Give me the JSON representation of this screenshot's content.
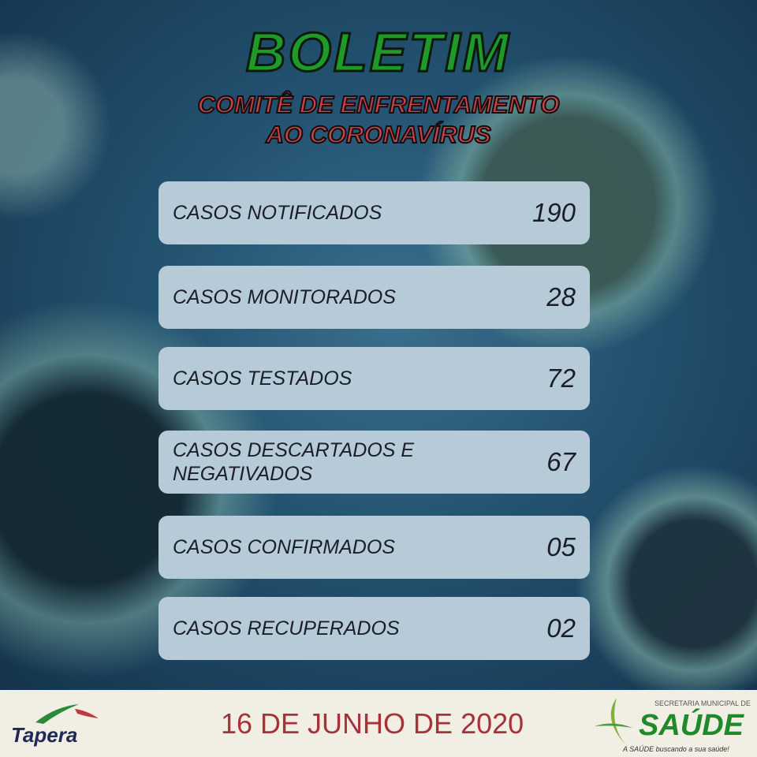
{
  "header": {
    "title": "BOLETIM",
    "subtitle_line1": "COMITÊ DE ENFRENTAMENTO",
    "subtitle_line2": "AO CORONAVÍRUS"
  },
  "stats": [
    {
      "label": "CASOS NOTIFICADOS",
      "value": "190"
    },
    {
      "label": "CASOS MONITORADOS",
      "value": "28"
    },
    {
      "label": "CASOS TESTADOS",
      "value": "72"
    },
    {
      "label": "CASOS DESCARTADOS E NEGATIVADOS",
      "value": "67"
    },
    {
      "label": "CASOS CONFIRMADOS",
      "value": "05"
    },
    {
      "label": "CASOS RECUPERADOS",
      "value": "02"
    }
  ],
  "footer": {
    "date": "16 DE JUNHO DE 2020",
    "left_logo": "Tapera",
    "right_logo_top": "SECRETARIA MUNICIPAL DE",
    "right_logo": "SAÚDE",
    "right_logo_tagline": "A SAÚDE buscando a sua saúde!"
  },
  "colors": {
    "title": "#1f9a2a",
    "subtitle": "#c8434b",
    "row": "#b6cad8",
    "date": "#a8323a"
  }
}
